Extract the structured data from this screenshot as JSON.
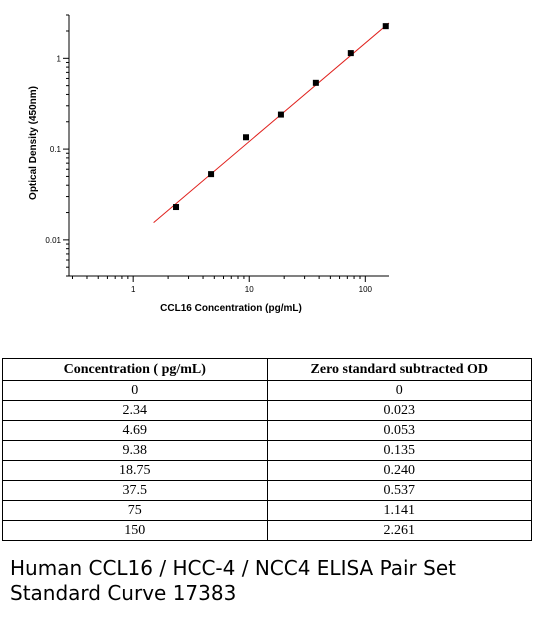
{
  "chart_data": {
    "type": "scatter",
    "xlabel": "CCL16 Concentration (pg/mL)",
    "ylabel": "Optical Density (450nm)",
    "xscale": "log",
    "yscale": "log",
    "xlim": [
      0.28,
      160
    ],
    "ylim": [
      0.004,
      3.0
    ],
    "x_ticks": [
      {
        "value": 1,
        "label": "1"
      },
      {
        "value": 10,
        "label": "10"
      },
      {
        "value": 100,
        "label": "100"
      }
    ],
    "y_ticks": [
      {
        "value": 0.01,
        "label": "0.01"
      },
      {
        "value": 0.1,
        "label": "0.1"
      },
      {
        "value": 1,
        "label": "1"
      }
    ],
    "series": [
      {
        "x": [
          2.34,
          4.69,
          9.38,
          18.75,
          37.5,
          75,
          150
        ],
        "y": [
          0.023,
          0.053,
          0.135,
          0.24,
          0.537,
          1.141,
          2.261
        ]
      }
    ],
    "fit_line": {
      "x": [
        1.5,
        160
      ],
      "y": [
        0.0155,
        2.45
      ],
      "color": "#e0201c"
    },
    "grid": false,
    "point_color": "#000000"
  },
  "table": {
    "headers": [
      "Concentration ( pg/mL)",
      "Zero standard subtracted OD"
    ],
    "rows": [
      [
        "0",
        "0"
      ],
      [
        "2.34",
        "0.023"
      ],
      [
        "4.69",
        "0.053"
      ],
      [
        "9.38",
        "0.135"
      ],
      [
        "18.75",
        "0.240"
      ],
      [
        "37.5",
        "0.537"
      ],
      [
        "75",
        "1.141"
      ],
      [
        "150",
        "2.261"
      ]
    ]
  },
  "caption": {
    "line1": "Human CCL16 / HCC-4 / NCC4 ELISA Pair Set",
    "line2": "Standard Curve 17383"
  }
}
